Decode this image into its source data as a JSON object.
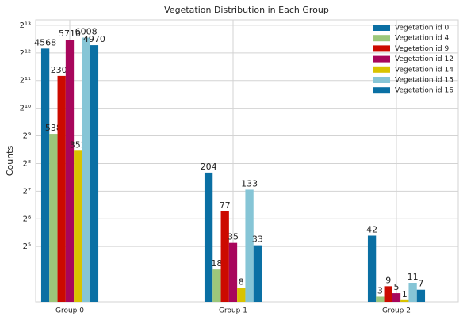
{
  "chart_data": {
    "type": "bar",
    "title": "Vegetation Distribution in Each Group",
    "ylabel": "Counts",
    "categories": [
      "Group 0",
      "Group 1",
      "Group 2"
    ],
    "series": [
      {
        "name": "Vegetation id 0",
        "color": "#0a6fa3",
        "values": [
          4568,
          204,
          42
        ]
      },
      {
        "name": "Vegetation id 4",
        "color": "#9cc77a",
        "values": [
          538,
          18,
          3
        ]
      },
      {
        "name": "Vegetation id 9",
        "color": "#cc0a00",
        "values": [
          2300,
          77,
          9
        ]
      },
      {
        "name": "Vegetation id 12",
        "color": "#a8065c",
        "values": [
          5710,
          35,
          5
        ]
      },
      {
        "name": "Vegetation id 14",
        "color": "#d9c300",
        "values": [
          353,
          8,
          1
        ]
      },
      {
        "name": "Vegetation id 15",
        "color": "#86c5d6",
        "values": [
          6008,
          133,
          11
        ]
      },
      {
        "name": "Vegetation id 16",
        "color": "#0a70a4",
        "values": [
          4970,
          33,
          7
        ]
      }
    ],
    "yscale": "symlog",
    "base": 2,
    "linthresh": 16,
    "ylim": [
      0,
      9400
    ],
    "yticks": [
      {
        "value": 32,
        "label": "2⁵"
      },
      {
        "value": 64,
        "label": "2⁶"
      },
      {
        "value": 128,
        "label": "2⁷"
      },
      {
        "value": 256,
        "label": "2⁸"
      },
      {
        "value": 512,
        "label": "2⁹"
      },
      {
        "value": 1024,
        "label": "2¹⁰"
      },
      {
        "value": 2048,
        "label": "2¹¹"
      },
      {
        "value": 4096,
        "label": "2¹²"
      },
      {
        "value": 8192,
        "label": "2¹³"
      }
    ],
    "grid": true,
    "legend": "upper right"
  }
}
